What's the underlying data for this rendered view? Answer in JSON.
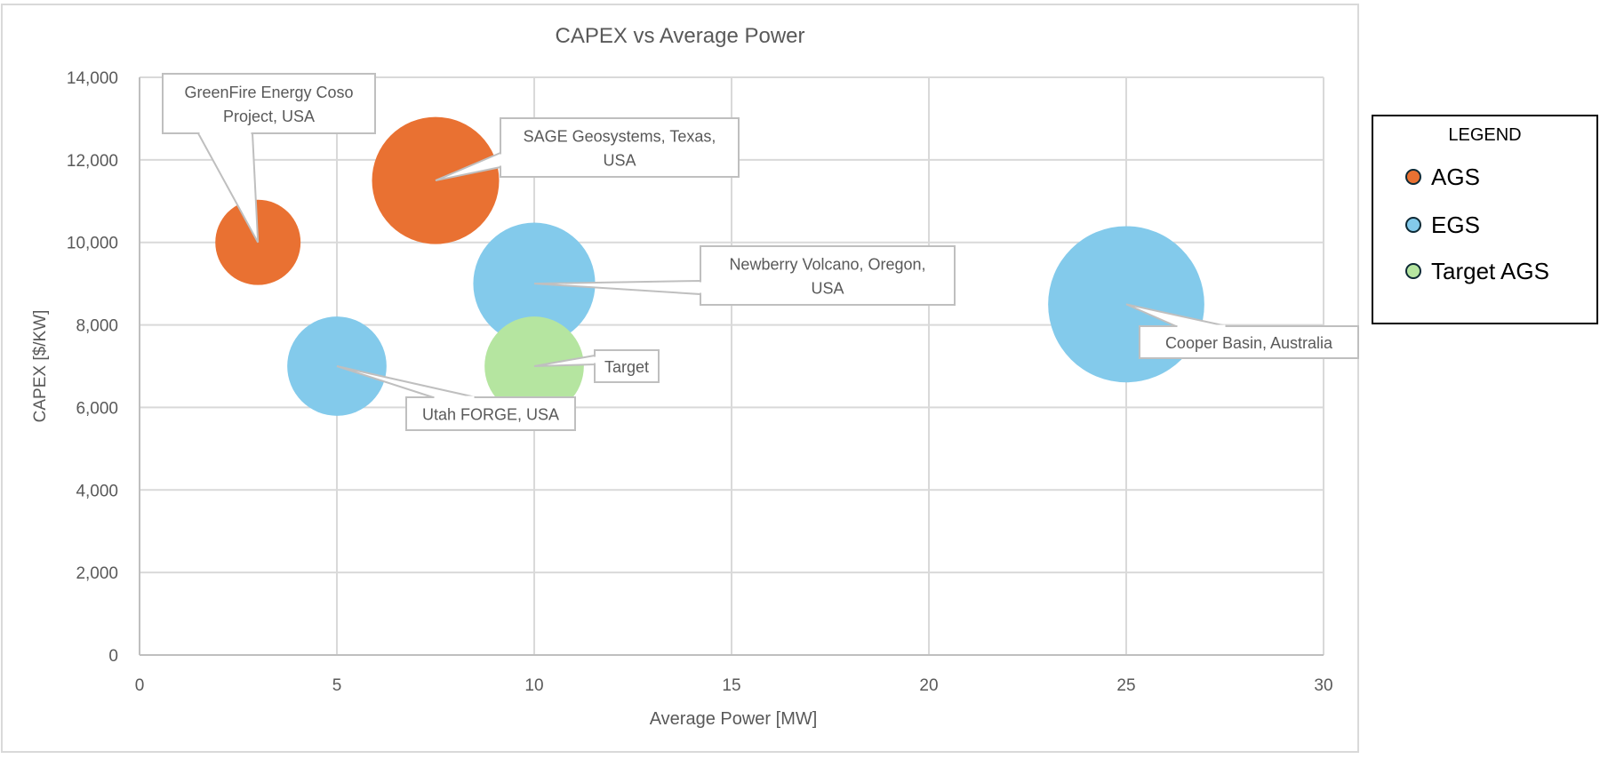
{
  "chart_data": {
    "type": "bubble",
    "title": "CAPEX vs Average Power",
    "xlabel": "Average Power [MW]",
    "ylabel": "CAPEX [$/KW]",
    "xlim": [
      0,
      30
    ],
    "ylim": [
      0,
      14000
    ],
    "x_ticks": [
      0,
      5,
      10,
      15,
      20,
      25,
      30
    ],
    "x_tick_labels": [
      "0",
      "5",
      "10",
      "15",
      "20",
      "25",
      "30"
    ],
    "y_ticks": [
      0,
      2000,
      4000,
      6000,
      8000,
      10000,
      12000,
      14000
    ],
    "y_tick_labels": [
      "0",
      "2,000",
      "4,000",
      "6,000",
      "8,000",
      "10,000",
      "12,000",
      "14,000"
    ],
    "grid": true,
    "series": [
      {
        "name": "AGS",
        "color": "#E97132",
        "points": [
          {
            "label": "GreenFire Energy Coso Project, USA",
            "x": 3,
            "y": 10000,
            "relative_size": 0.45
          },
          {
            "label": "SAGE Geosystems, Texas, USA",
            "x": 7.5,
            "y": 11500,
            "relative_size": 1.0
          }
        ]
      },
      {
        "name": "EGS",
        "color": "#83CAEB",
        "points": [
          {
            "label": "Newberry Volcano, Oregon, USA",
            "x": 10,
            "y": 9000,
            "relative_size": 0.92
          },
          {
            "label": "Utah FORGE, USA",
            "x": 5,
            "y": 7000,
            "relative_size": 0.61
          },
          {
            "label": "Cooper Basin, Australia",
            "x": 25,
            "y": 8500,
            "relative_size": 1.51
          }
        ]
      },
      {
        "name": "Target AGS",
        "color": "#B5E5A0",
        "points": [
          {
            "label": "Target",
            "x": 10,
            "y": 7000,
            "relative_size": 0.61
          }
        ]
      }
    ],
    "legend": {
      "title": "LEGEND",
      "position": "right",
      "entries": [
        "AGS",
        "EGS",
        "Target AGS"
      ]
    }
  }
}
